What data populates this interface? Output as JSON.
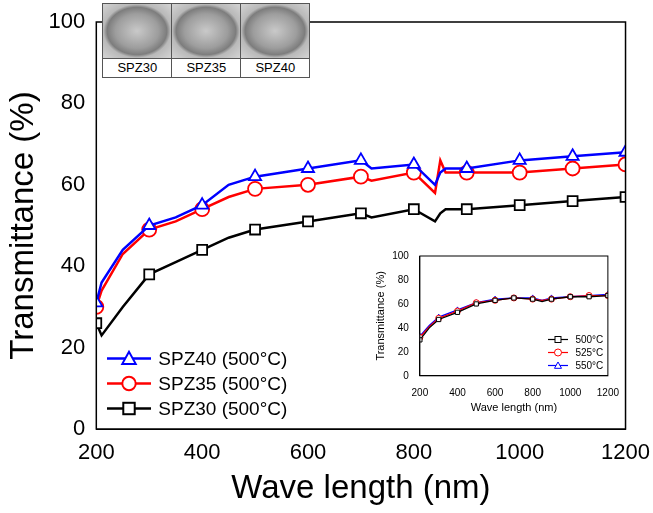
{
  "chart_data": [
    {
      "type": "line",
      "xlabel": "Wave length (nm)",
      "ylabel": "Transmittance (%)",
      "x": [
        200,
        210,
        250,
        300,
        350,
        400,
        450,
        500,
        600,
        700,
        720,
        800,
        840,
        850,
        860,
        900,
        1000,
        1100,
        1200
      ],
      "xlim": [
        200,
        1200
      ],
      "xticks": [
        200,
        400,
        600,
        800,
        1000,
        1200
      ],
      "ylim": [
        0,
        100
      ],
      "yticks": [
        0,
        20,
        40,
        60,
        80,
        100
      ],
      "grid": false,
      "legend": "lower left",
      "series": [
        {
          "name": "SPZ40 (500°C)",
          "color": "#0000ff",
          "marker": "triangle",
          "line_style": "solid",
          "values": [
            31,
            36,
            44,
            50,
            52,
            55,
            60,
            62,
            64,
            66,
            64,
            65,
            60,
            63,
            64,
            64,
            66,
            67,
            68
          ]
        },
        {
          "name": "SPZ35 (500°C)",
          "color": "#ff0000",
          "marker": "circle",
          "line_style": "solid",
          "values": [
            30,
            34,
            43,
            49,
            51,
            54,
            57,
            59,
            60,
            62,
            61,
            63,
            58,
            66,
            63,
            63,
            63,
            64,
            65
          ]
        },
        {
          "name": "SPZ30 (500°C)",
          "color": "#000000",
          "marker": "square",
          "line_style": "solid",
          "values": [
            26,
            23,
            30,
            38,
            41,
            44,
            47,
            49,
            51,
            53,
            52,
            54,
            51,
            53,
            54,
            54,
            55,
            56,
            57
          ]
        }
      ]
    },
    {
      "type": "line",
      "xlabel": "Wave length (nm)",
      "ylabel": "Transmittance (%)",
      "x": [
        200,
        250,
        300,
        400,
        500,
        600,
        700,
        800,
        850,
        900,
        1000,
        1100,
        1200
      ],
      "xlim": [
        200,
        1200
      ],
      "xticks": [
        200,
        400,
        600,
        800,
        1000,
        1200
      ],
      "ylim": [
        0,
        100
      ],
      "yticks": [
        0,
        20,
        40,
        60,
        80,
        100
      ],
      "grid": false,
      "legend": "lower right",
      "series": [
        {
          "name": "500°C",
          "color": "#000000",
          "marker": "square",
          "line_style": "solid",
          "values": [
            30,
            40,
            47,
            53,
            60,
            63,
            65,
            64,
            62,
            64,
            66,
            66,
            67
          ]
        },
        {
          "name": "525°C",
          "color": "#ff0000",
          "marker": "circle",
          "line_style": "solid",
          "values": [
            32,
            41,
            48,
            54,
            61,
            63,
            65,
            64,
            63,
            64,
            66,
            67,
            67
          ]
        },
        {
          "name": "550°C",
          "color": "#0000ff",
          "marker": "triangle",
          "line_style": "solid",
          "values": [
            33,
            42,
            49,
            55,
            61,
            64,
            65,
            65,
            63,
            65,
            66,
            67,
            68
          ]
        }
      ]
    }
  ],
  "photo_inset": {
    "labels": [
      "SPZ30",
      "SPZ35",
      "SPZ40"
    ]
  }
}
